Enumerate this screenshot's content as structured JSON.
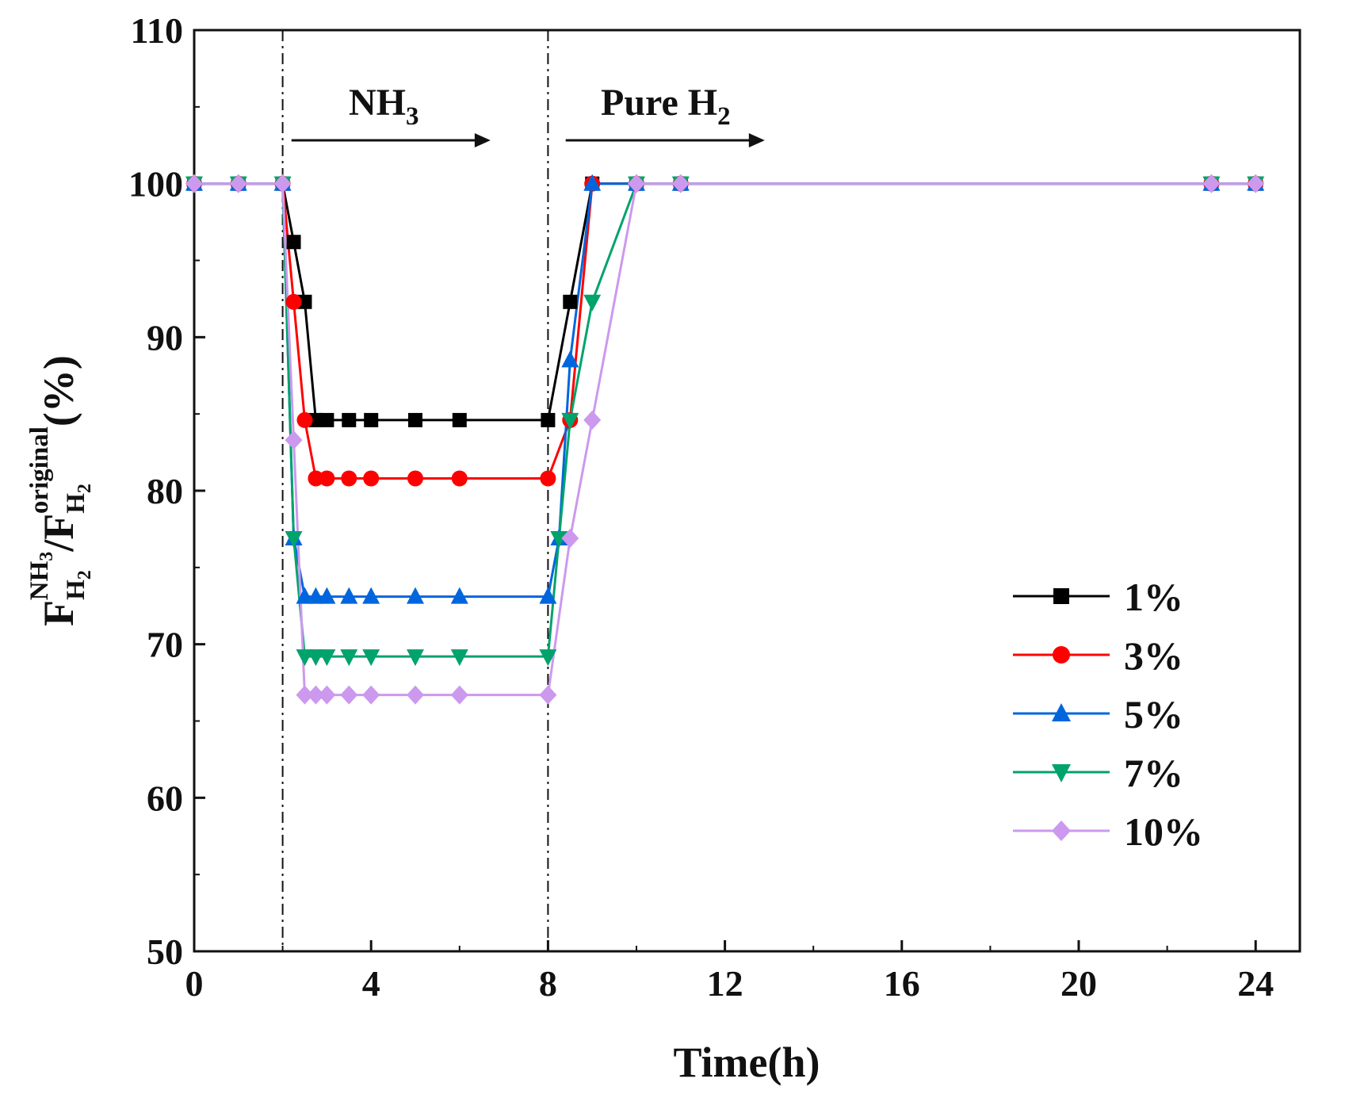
{
  "chart_data": {
    "type": "line",
    "xlabel": "Time(h)",
    "ylabel": {
      "main": "F",
      "sub1": "H",
      "sub1b": "2",
      "sup1": "NH",
      "sup1b": "3",
      "slash": "/F",
      "sub2": "H",
      "sub2b": "2",
      "sup2": "original",
      "unit": "(%)"
    },
    "xlim": [
      0,
      25
    ],
    "ylim": [
      50,
      110
    ],
    "x_ticks": [
      0,
      4,
      8,
      12,
      16,
      20,
      24
    ],
    "y_ticks": [
      50,
      60,
      70,
      80,
      90,
      100,
      110
    ],
    "grid": false,
    "legend_position": "right-middle",
    "vlines": [
      2,
      8
    ],
    "annotations": [
      {
        "text": "NH",
        "sub": "3",
        "arrow_from": 2.2,
        "arrow_to": 6.7
      },
      {
        "text": "Pure H",
        "sub": "2",
        "arrow_from": 8.4,
        "arrow_to": 12.9
      }
    ],
    "series": [
      {
        "name": "1%",
        "color": "#000000",
        "marker": "square",
        "x": [
          0,
          1,
          2,
          2.25,
          2.5,
          2.75,
          3,
          3.5,
          4,
          5,
          6,
          8,
          8.5,
          9,
          10,
          11,
          23,
          24
        ],
        "y": [
          100,
          100,
          100,
          96.2,
          92.3,
          84.6,
          84.6,
          84.6,
          84.6,
          84.6,
          84.6,
          84.6,
          92.3,
          100,
          100,
          100,
          100,
          100
        ]
      },
      {
        "name": "3%",
        "color": "#ff0000",
        "marker": "circle",
        "x": [
          0,
          1,
          2,
          2.25,
          2.5,
          2.75,
          3,
          3.5,
          4,
          5,
          6,
          8,
          8.5,
          9,
          10,
          11,
          23,
          24
        ],
        "y": [
          100,
          100,
          100,
          92.3,
          84.6,
          80.8,
          80.8,
          80.8,
          80.8,
          80.8,
          80.8,
          80.8,
          84.6,
          100,
          100,
          100,
          100,
          100
        ]
      },
      {
        "name": "5%",
        "color": "#0066dd",
        "marker": "triangle-up",
        "x": [
          0,
          1,
          2,
          2.25,
          2.5,
          2.75,
          3,
          3.5,
          4,
          5,
          6,
          8,
          8.25,
          8.5,
          9,
          10,
          11,
          23,
          24
        ],
        "y": [
          100,
          100,
          100,
          76.9,
          73.1,
          73.1,
          73.1,
          73.1,
          73.1,
          73.1,
          73.1,
          73.1,
          76.9,
          88.5,
          100,
          100,
          100,
          100,
          100
        ]
      },
      {
        "name": "7%",
        "color": "#00a36c",
        "marker": "triangle-down",
        "x": [
          0,
          1,
          2,
          2.25,
          2.5,
          2.75,
          3,
          3.5,
          4,
          5,
          6,
          8,
          8.25,
          8.5,
          9,
          10,
          11,
          23,
          24
        ],
        "y": [
          100,
          100,
          100,
          76.9,
          69.2,
          69.2,
          69.2,
          69.2,
          69.2,
          69.2,
          69.2,
          69.2,
          76.9,
          84.6,
          92.3,
          100,
          100,
          100,
          100
        ]
      },
      {
        "name": "10%",
        "color": "#cc99ee",
        "marker": "diamond",
        "x": [
          0,
          1,
          2,
          2.25,
          2.5,
          2.75,
          3,
          3.5,
          4,
          5,
          6,
          8,
          8.5,
          9,
          10,
          11,
          23,
          24
        ],
        "y": [
          100,
          100,
          100,
          83.3,
          66.7,
          66.7,
          66.7,
          66.7,
          66.7,
          66.7,
          66.7,
          66.7,
          76.9,
          84.6,
          100,
          100,
          100,
          100
        ]
      }
    ]
  }
}
